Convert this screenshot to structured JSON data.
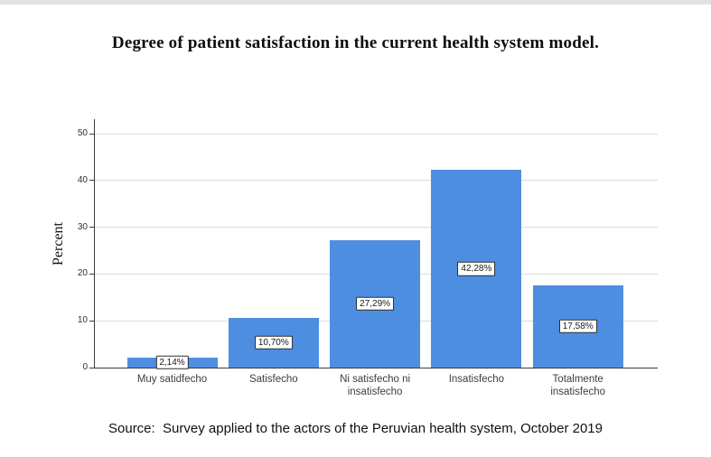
{
  "page": {
    "source_note": "Source:  Survey applied to the actors of the Peruvian health system, October 2019"
  },
  "chart_data": {
    "type": "bar",
    "title": "Degree of patient satisfaction in the current health system model.",
    "categories": [
      "Muy satidfecho",
      "Satisfecho",
      "Ni satisfecho ni insatisfecho",
      "Insatisfecho",
      "Totalmente insatisfecho"
    ],
    "values": [
      2.14,
      10.7,
      27.29,
      42.28,
      17.58
    ],
    "value_labels": [
      "2,14%",
      "10,70%",
      "27,29%",
      "42,28%",
      "17,58%"
    ],
    "xlabel": "",
    "ylabel": "Percent",
    "ylim": [
      0,
      53.1
    ],
    "yticks": [
      0,
      10,
      20,
      30,
      40,
      50
    ],
    "grid": true,
    "legend": "none",
    "bar_color": "#4e8ee0",
    "gridline_color": "#dbdbdb",
    "axis_color": "#3c3c3c"
  }
}
